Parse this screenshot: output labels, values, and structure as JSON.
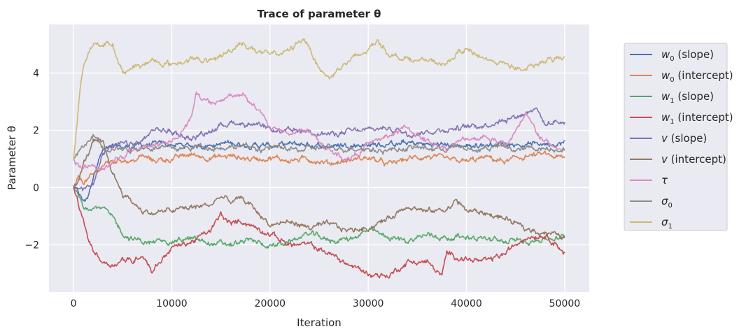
{
  "chart_data": {
    "type": "line",
    "title": "Trace of parameter θ",
    "xlabel": "Iteration",
    "ylabel": "Parameter θ",
    "xlim": [
      -2500,
      52500
    ],
    "ylim": [
      -3.65,
      5.7
    ],
    "xticks": [
      0,
      10000,
      20000,
      30000,
      40000,
      50000
    ],
    "yticks": [
      -2,
      0,
      2,
      4
    ],
    "xtick_labels": [
      "0",
      "10000",
      "20000",
      "30000",
      "40000",
      "50000"
    ],
    "ytick_labels": [
      "−2",
      "0",
      "2",
      "4"
    ],
    "grid": true,
    "legend_position": "outside-right",
    "series": [
      {
        "name": "w0 (slope)",
        "label_main": "w",
        "label_sub": "0",
        "label_rest": " (slope)",
        "color": "#4c72b0",
        "x": [
          0,
          500,
          1000,
          1500,
          2000,
          2500,
          3000,
          4000,
          5000,
          7000,
          9000,
          10000,
          12000,
          14000,
          16000,
          18000,
          20000,
          22000,
          24000,
          26000,
          28000,
          30000,
          32000,
          34000,
          36000,
          38000,
          40000,
          42000,
          44000,
          46000,
          48000,
          50000
        ],
        "y": [
          0.0,
          -0.2,
          -0.5,
          -0.3,
          0.4,
          1.0,
          1.3,
          1.4,
          1.4,
          1.5,
          1.5,
          1.5,
          1.45,
          1.5,
          1.55,
          1.5,
          1.45,
          1.5,
          1.5,
          1.45,
          1.5,
          1.5,
          1.5,
          1.55,
          1.5,
          1.5,
          1.45,
          1.5,
          1.55,
          1.5,
          1.55,
          1.55
        ]
      },
      {
        "name": "w0 (intercept)",
        "label_main": "w",
        "label_sub": "0",
        "label_rest": " (intercept)",
        "color": "#dd8452",
        "x": [
          0,
          500,
          1000,
          2000,
          3000,
          4000,
          5000,
          6000,
          7000,
          8000,
          10000,
          12000,
          14000,
          16000,
          18000,
          20000,
          22000,
          24000,
          26000,
          28000,
          30000,
          32000,
          34000,
          36000,
          38000,
          40000,
          42000,
          44000,
          46000,
          48000,
          50000
        ],
        "y": [
          0.0,
          0.3,
          0.2,
          0.4,
          0.8,
          0.9,
          1.0,
          0.9,
          1.1,
          0.95,
          1.0,
          1.15,
          1.05,
          1.1,
          1.0,
          1.05,
          0.95,
          1.0,
          0.85,
          0.95,
          1.05,
          0.8,
          1.0,
          1.1,
          0.95,
          0.9,
          1.05,
          0.9,
          1.1,
          1.15,
          1.0
        ]
      },
      {
        "name": "w1 (slope)",
        "label_main": "w",
        "label_sub": "1",
        "label_rest": " (slope)",
        "color": "#55a868",
        "x": [
          0,
          500,
          1000,
          2000,
          3000,
          4000,
          5000,
          6000,
          8000,
          10000,
          12000,
          14000,
          16000,
          18000,
          20000,
          22000,
          24000,
          26000,
          28000,
          30000,
          32000,
          34000,
          36000,
          38000,
          40000,
          42000,
          44000,
          46000,
          48000,
          50000
        ],
        "y": [
          0.0,
          -0.3,
          -0.65,
          -0.65,
          -0.7,
          -1.1,
          -1.6,
          -1.8,
          -1.95,
          -1.85,
          -1.8,
          -1.95,
          -2.0,
          -1.85,
          -2.05,
          -1.9,
          -1.6,
          -1.85,
          -1.8,
          -1.5,
          -1.75,
          -1.85,
          -1.65,
          -1.75,
          -1.7,
          -1.8,
          -1.9,
          -1.85,
          -1.8,
          -1.75
        ]
      },
      {
        "name": "w1 (intercept)",
        "label_main": "w",
        "label_sub": "1",
        "label_rest": " (intercept)",
        "color": "#c44e52",
        "x": [
          0,
          500,
          1000,
          1500,
          2000,
          3000,
          4000,
          5000,
          6000,
          7000,
          8000,
          9000,
          10000,
          12000,
          14000,
          15000,
          16000,
          17000,
          18000,
          20000,
          22000,
          24000,
          26000,
          28000,
          30000,
          31000,
          32000,
          34000,
          36000,
          37500,
          38000,
          40000,
          42000,
          44000,
          46000,
          48000,
          49000,
          50000
        ],
        "y": [
          0.0,
          -0.6,
          -1.2,
          -1.8,
          -2.2,
          -2.6,
          -2.7,
          -2.5,
          -2.6,
          -2.3,
          -2.9,
          -2.5,
          -2.1,
          -1.9,
          -1.5,
          -0.95,
          -1.3,
          -1.15,
          -1.3,
          -1.6,
          -2.0,
          -2.0,
          -2.3,
          -2.7,
          -3.0,
          -3.05,
          -3.1,
          -2.6,
          -2.6,
          -3.1,
          -2.3,
          -2.5,
          -2.6,
          -2.3,
          -1.7,
          -1.65,
          -1.9,
          -2.3
        ]
      },
      {
        "name": "v (slope)",
        "label_main": "v",
        "label_sub": "",
        "label_rest": " (slope)",
        "color": "#8172b3",
        "x": [
          0,
          500,
          1000,
          2000,
          3000,
          4000,
          5000,
          6000,
          7000,
          8000,
          9000,
          10000,
          12000,
          14000,
          16000,
          18000,
          20000,
          22000,
          24000,
          26000,
          28000,
          30000,
          32000,
          34000,
          36000,
          38000,
          40000,
          42000,
          44000,
          46000,
          47000,
          48000,
          49000,
          50000
        ],
        "y": [
          0.0,
          0.0,
          -0.05,
          0.1,
          1.3,
          1.4,
          1.5,
          1.5,
          1.6,
          2.0,
          2.0,
          1.95,
          1.7,
          2.0,
          2.3,
          2.2,
          2.0,
          1.95,
          2.0,
          1.85,
          1.95,
          2.0,
          2.1,
          1.9,
          1.95,
          2.05,
          2.1,
          2.2,
          2.4,
          2.6,
          2.85,
          2.2,
          2.3,
          2.3
        ]
      },
      {
        "name": "v (intercept)",
        "label_main": "v",
        "label_sub": "",
        "label_rest": " (intercept)",
        "color": "#937860",
        "x": [
          0,
          500,
          1000,
          2000,
          3000,
          4000,
          5000,
          6000,
          7000,
          8000,
          10000,
          12000,
          14000,
          15000,
          16000,
          17000,
          18000,
          20000,
          22000,
          24000,
          26000,
          28000,
          30000,
          32000,
          34000,
          36000,
          38000,
          39000,
          40000,
          42000,
          44000,
          46000,
          48000,
          50000
        ],
        "y": [
          0.0,
          0.2,
          0.8,
          1.6,
          1.5,
          0.5,
          -0.2,
          -0.5,
          -0.8,
          -0.9,
          -0.8,
          -0.7,
          -0.6,
          -0.3,
          -0.5,
          -0.4,
          -0.6,
          -1.3,
          -1.2,
          -1.4,
          -1.3,
          -1.5,
          -1.4,
          -1.1,
          -0.6,
          -0.85,
          -0.75,
          -0.45,
          -0.8,
          -0.9,
          -1.1,
          -1.45,
          -1.55,
          -1.75
        ]
      },
      {
        "name": "τ",
        "label_main": "τ",
        "label_sub": "",
        "label_rest": "",
        "color": "#da8bc3",
        "x": [
          0,
          500,
          1000,
          2000,
          3000,
          4000,
          5000,
          6000,
          8000,
          10000,
          11000,
          12000,
          12500,
          13000,
          14000,
          15000,
          16000,
          17000,
          18000,
          19000,
          20000,
          22000,
          24000,
          25000,
          26000,
          27000,
          28000,
          30000,
          32000,
          34000,
          36000,
          38000,
          40000,
          42000,
          44000,
          45000,
          46000,
          47000,
          48000,
          49000,
          50000
        ],
        "y": [
          1.0,
          0.8,
          0.75,
          0.7,
          0.6,
          0.9,
          1.1,
          1.3,
          1.5,
          1.6,
          2.0,
          2.4,
          3.3,
          3.1,
          2.9,
          3.0,
          3.2,
          3.3,
          3.0,
          2.6,
          2.1,
          1.9,
          2.0,
          1.6,
          1.3,
          1.1,
          1.0,
          1.5,
          1.8,
          2.1,
          1.6,
          1.4,
          1.7,
          1.8,
          1.5,
          1.9,
          2.5,
          2.0,
          1.6,
          1.4,
          1.3
        ]
      },
      {
        "name": "σ0",
        "label_main": "σ",
        "label_sub": "0",
        "label_rest": "",
        "color": "#8c8c8c",
        "x": [
          0,
          500,
          1000,
          1500,
          2000,
          2500,
          3000,
          4000,
          5000,
          7000,
          9000,
          11000,
          13000,
          15000,
          17000,
          19000,
          21000,
          23000,
          25000,
          27000,
          29000,
          31000,
          33000,
          35000,
          37000,
          39000,
          41000,
          43000,
          45000,
          47000,
          49000,
          50000
        ],
        "y": [
          1.0,
          1.2,
          1.4,
          1.6,
          1.8,
          1.7,
          1.4,
          1.4,
          1.35,
          1.4,
          1.4,
          1.35,
          1.45,
          1.4,
          1.45,
          1.35,
          1.4,
          1.3,
          1.4,
          1.35,
          1.4,
          1.3,
          1.35,
          1.4,
          1.35,
          1.4,
          1.3,
          1.45,
          1.3,
          1.4,
          1.35,
          1.4
        ]
      },
      {
        "name": "σ1",
        "label_main": "σ",
        "label_sub": "1",
        "label_rest": "",
        "color": "#ccb974",
        "x": [
          0,
          300,
          700,
          1000,
          1500,
          2000,
          2500,
          3000,
          3500,
          4000,
          4500,
          5000,
          6000,
          7000,
          8000,
          10000,
          12000,
          14000,
          16000,
          17000,
          18000,
          20000,
          22000,
          23500,
          24000,
          25000,
          26000,
          27000,
          28000,
          30000,
          31000,
          32000,
          34000,
          36000,
          38000,
          39000,
          40000,
          42000,
          44000,
          46000,
          48000,
          50000
        ],
        "y": [
          0.95,
          2.0,
          3.6,
          4.2,
          4.6,
          4.9,
          5.1,
          4.9,
          5.05,
          5.0,
          4.5,
          4.0,
          4.2,
          4.3,
          4.4,
          4.3,
          4.5,
          4.4,
          4.8,
          5.1,
          4.9,
          4.6,
          4.8,
          5.25,
          4.9,
          4.2,
          3.8,
          4.2,
          4.4,
          4.8,
          5.2,
          4.7,
          4.5,
          4.4,
          4.3,
          4.7,
          4.8,
          4.5,
          4.3,
          4.1,
          4.4,
          4.6
        ]
      }
    ]
  }
}
